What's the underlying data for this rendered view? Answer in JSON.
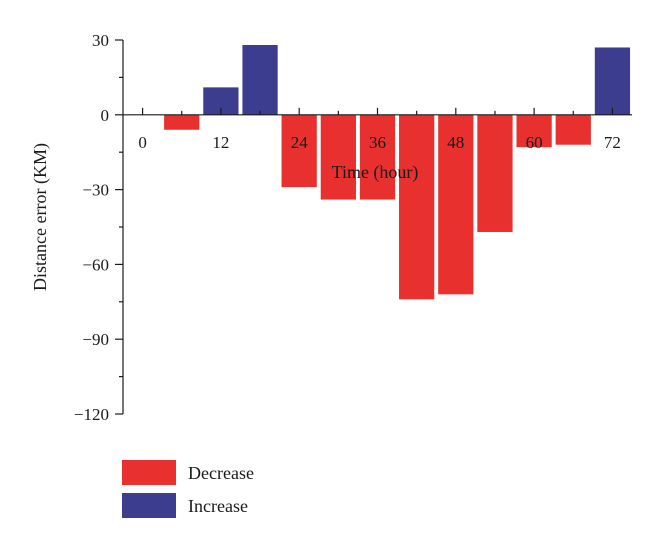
{
  "chart_data": {
    "type": "bar",
    "xlabel": "Time (hour)",
    "ylabel": "Distance error (KM)",
    "ylim": [
      -120,
      30
    ],
    "xlim": [
      -3,
      75
    ],
    "yticks": [
      30,
      0,
      -30,
      -60,
      -90,
      -120
    ],
    "ytick_labels": [
      "30",
      "0",
      "−30",
      "−60",
      "−90",
      "−120"
    ],
    "xticks": [
      0,
      12,
      24,
      36,
      48,
      60,
      72
    ],
    "xtick_labels": [
      "0",
      "12",
      "24",
      "36",
      "48",
      "60",
      "72"
    ],
    "bar_width_hours": 5.4,
    "grid": false,
    "legend_position": "bottom-left",
    "series": [
      {
        "name": "Decrease",
        "color": "#e8302e",
        "x": [
          6,
          24,
          30,
          36,
          42,
          48,
          54,
          60,
          66
        ],
        "values": [
          -6,
          -29,
          -34,
          -34,
          -74,
          -72,
          -47,
          -13,
          -12
        ]
      },
      {
        "name": "Increase",
        "color": "#3d3d8f",
        "x": [
          12,
          18,
          72
        ],
        "values": [
          11,
          28,
          27
        ]
      }
    ]
  }
}
